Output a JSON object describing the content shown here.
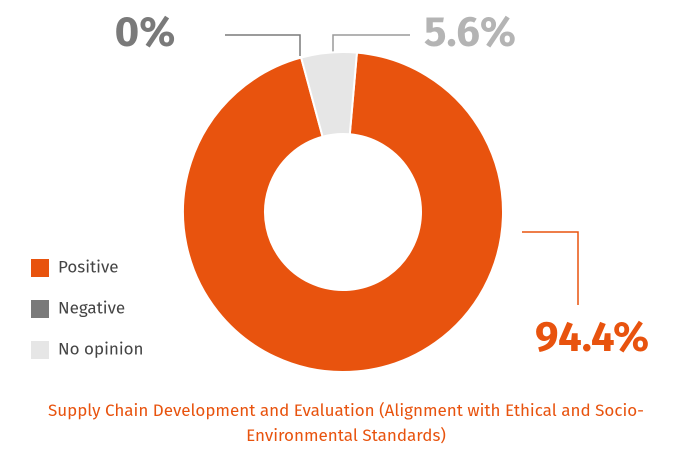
{
  "chart_data": {
    "type": "donut",
    "title": "Supply Chain Development and Evaluation (Alignment with Ethical and Socio-Environmental Standards)",
    "categories": [
      "Positive",
      "Negative",
      "No opinion"
    ],
    "values": [
      94.4,
      0,
      5.6
    ],
    "value_labels": [
      "94.4%",
      "0%",
      "5.6%"
    ],
    "colors": [
      "#e8530e",
      "#7a7a7a",
      "#e6e6e6"
    ],
    "legend": "left"
  }
}
